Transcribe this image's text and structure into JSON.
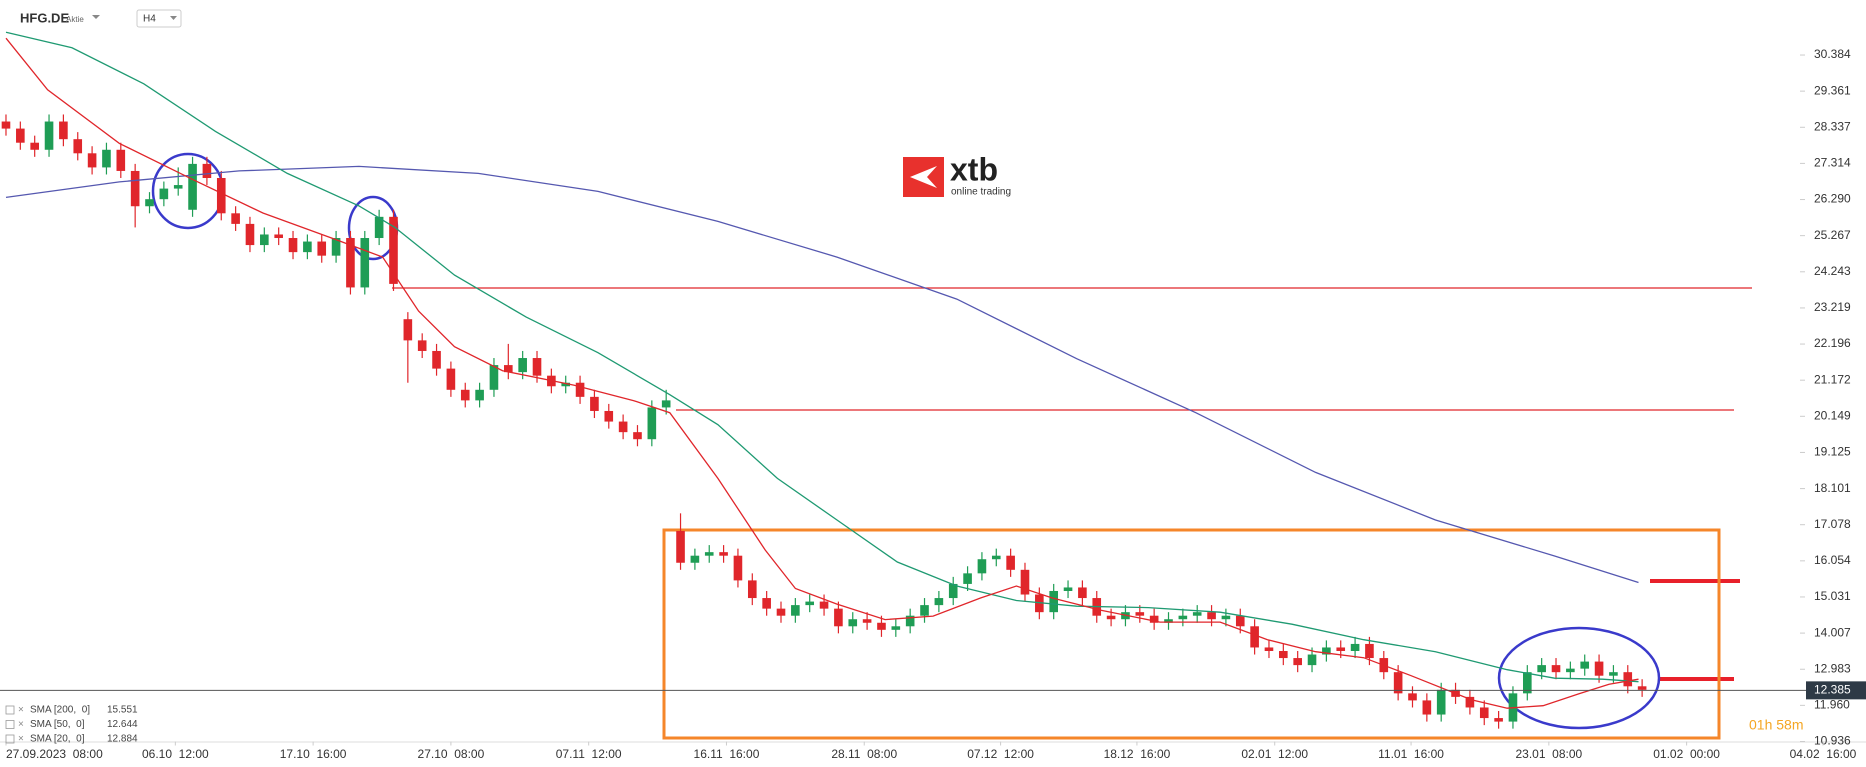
{
  "chart_data": {
    "type": "candlestick",
    "symbol": "HFG.DE",
    "instrument_type": "Aktie",
    "interval": "H4",
    "brand": "xtb",
    "brand_tagline": "online trading",
    "countdown": "01h 58m",
    "last_price": 12.385,
    "up_color": "#1f9d55",
    "down_color": "#e0262b",
    "xlim": [
      -0.417,
      125
    ],
    "ylim": [
      10.936,
      31.943
    ],
    "yticks": [
      30.384,
      29.361,
      28.337,
      27.314,
      {
        "value": 26.29,
        "label": "26.290"
      },
      25.267,
      24.243,
      23.219,
      22.196,
      21.172,
      20.149,
      19.125,
      18.101,
      17.078,
      16.054,
      15.031,
      14.007,
      12.983,
      {
        "value": 11.96,
        "label": "11.960"
      },
      10.936
    ],
    "xticks": [
      {
        "value": 0,
        "label": "27.09.2023  08:00"
      },
      {
        "value": 11.8,
        "label": "06.10  12:00"
      },
      {
        "value": 21.4,
        "label": "17.10  16:00"
      },
      {
        "value": 31,
        "label": "27.10  08:00"
      },
      {
        "value": 40.6,
        "label": "07.11  12:00"
      },
      {
        "value": 50.2,
        "label": "16.11  16:00"
      },
      {
        "value": 59.8,
        "label": "28.11  08:00"
      },
      {
        "value": 69.3,
        "label": "07.12  12:00"
      },
      {
        "value": 78.8,
        "label": "18.12  16:00"
      },
      {
        "value": 88.4,
        "label": "02.01  12:00"
      },
      {
        "value": 97.9,
        "label": "11.01  16:00"
      },
      {
        "value": 107.5,
        "label": "23.01  08:00"
      },
      {
        "value": 117.1,
        "label": "01.02  00:00"
      },
      {
        "value": 126.6,
        "label": "04.02  16:00"
      }
    ],
    "candles": {
      "open": [
        28.5,
        28.3,
        27.9,
        27.7,
        28.5,
        28.0,
        27.6,
        27.2,
        27.7,
        27.1,
        26.1,
        26.3,
        26.6,
        26.0,
        27.3,
        26.9,
        25.9,
        25.6,
        25.0,
        25.3,
        25.2,
        24.8,
        25.1,
        24.7,
        25.2,
        23.8,
        25.2,
        25.8,
        22.9,
        22.3,
        22.0,
        21.5,
        20.9,
        20.6,
        20.9,
        21.6,
        21.4,
        21.8,
        21.3,
        21.0,
        21.1,
        20.7,
        20.3,
        20.0,
        19.7,
        19.5,
        20.4,
        16.9,
        16.0,
        16.2,
        16.3,
        16.2,
        15.5,
        15.0,
        14.7,
        14.5,
        14.8,
        14.9,
        14.7,
        14.2,
        14.4,
        14.3,
        14.1,
        14.2,
        14.5,
        14.8,
        15.0,
        15.4,
        15.7,
        16.1,
        16.2,
        15.8,
        15.1,
        14.6,
        15.2,
        15.3,
        15.0,
        14.5,
        14.4,
        14.6,
        14.5,
        14.3,
        14.4,
        14.5,
        14.6,
        14.4,
        14.5,
        14.2,
        13.6,
        13.5,
        13.3,
        13.1,
        13.4,
        13.6,
        13.5,
        13.7,
        13.3,
        12.9,
        12.3,
        12.1,
        11.7,
        12.4,
        12.2,
        11.9,
        11.6,
        11.5,
        12.3,
        12.9,
        13.1,
        12.9,
        13.0,
        13.2,
        12.8,
        12.9,
        12.5
      ],
      "high": [
        28.7,
        28.5,
        28.1,
        28.7,
        28.7,
        28.2,
        27.8,
        27.9,
        27.9,
        27.3,
        26.5,
        26.8,
        27.2,
        27.5,
        27.5,
        27.1,
        26.1,
        25.8,
        25.5,
        25.5,
        25.4,
        25.3,
        25.3,
        25.4,
        25.4,
        25.4,
        26.0,
        26.0,
        23.1,
        22.5,
        22.2,
        21.7,
        21.1,
        21.1,
        21.8,
        22.2,
        22.0,
        22.0,
        21.5,
        21.3,
        21.3,
        20.9,
        20.5,
        20.2,
        19.9,
        20.6,
        20.9,
        17.4,
        16.4,
        16.5,
        16.5,
        16.4,
        15.7,
        15.2,
        14.9,
        15.0,
        15.1,
        15.1,
        14.9,
        14.6,
        14.6,
        14.5,
        14.4,
        14.7,
        15.0,
        15.2,
        15.6,
        15.9,
        16.3,
        16.4,
        16.4,
        16.0,
        15.3,
        15.4,
        15.5,
        15.5,
        15.2,
        14.7,
        14.8,
        14.8,
        14.7,
        14.6,
        14.7,
        14.8,
        14.8,
        14.7,
        14.7,
        14.4,
        13.8,
        13.7,
        13.5,
        13.6,
        13.8,
        13.8,
        13.9,
        13.9,
        13.5,
        13.1,
        12.5,
        12.3,
        12.6,
        12.6,
        12.4,
        12.1,
        11.8,
        12.5,
        13.1,
        13.3,
        13.3,
        13.2,
        13.4,
        13.4,
        13.1,
        13.1,
        12.7
      ],
      "low": [
        28.1,
        27.7,
        27.5,
        27.5,
        27.8,
        27.4,
        27.0,
        27.0,
        26.9,
        25.5,
        25.9,
        26.1,
        26.4,
        25.8,
        26.7,
        25.7,
        25.4,
        24.8,
        24.8,
        25.0,
        24.6,
        24.6,
        24.5,
        24.5,
        23.6,
        23.6,
        25.0,
        23.7,
        21.1,
        21.8,
        21.3,
        20.7,
        20.4,
        20.4,
        20.7,
        21.2,
        21.2,
        21.1,
        20.8,
        20.8,
        20.5,
        20.1,
        19.8,
        19.5,
        19.3,
        19.3,
        20.2,
        15.8,
        15.8,
        16.0,
        16.0,
        15.3,
        14.8,
        14.5,
        14.3,
        14.3,
        14.6,
        14.5,
        14.0,
        14.0,
        14.1,
        13.9,
        13.9,
        14.0,
        14.3,
        14.6,
        14.8,
        15.2,
        15.5,
        15.9,
        15.6,
        14.9,
        14.4,
        14.4,
        15.0,
        14.8,
        14.3,
        14.2,
        14.2,
        14.3,
        14.1,
        14.1,
        14.2,
        14.3,
        14.2,
        14.2,
        14.0,
        13.4,
        13.3,
        13.1,
        12.9,
        12.9,
        13.2,
        13.3,
        13.3,
        13.1,
        12.7,
        12.1,
        11.9,
        11.5,
        11.5,
        12.0,
        11.7,
        11.4,
        11.3,
        11.3,
        12.1,
        12.7,
        12.7,
        12.7,
        12.8,
        12.6,
        12.6,
        12.3,
        12.2
      ],
      "close": [
        28.3,
        27.9,
        27.7,
        28.5,
        28.0,
        27.6,
        27.2,
        27.7,
        27.1,
        26.1,
        26.3,
        26.6,
        26.7,
        27.3,
        26.9,
        25.9,
        25.6,
        25.0,
        25.3,
        25.2,
        24.8,
        25.1,
        24.7,
        25.2,
        23.8,
        25.2,
        25.8,
        23.9,
        22.3,
        22.0,
        21.5,
        20.9,
        20.6,
        20.9,
        21.6,
        21.4,
        21.8,
        21.3,
        21.0,
        21.1,
        20.7,
        20.3,
        20.0,
        19.7,
        19.5,
        20.4,
        20.6,
        16.0,
        16.2,
        16.3,
        16.2,
        15.5,
        15.0,
        14.7,
        14.5,
        14.8,
        14.9,
        14.7,
        14.2,
        14.4,
        14.3,
        14.1,
        14.2,
        14.5,
        14.8,
        15.0,
        15.4,
        15.7,
        16.1,
        16.2,
        15.8,
        15.1,
        14.6,
        15.2,
        15.3,
        15.0,
        14.5,
        14.4,
        14.6,
        14.5,
        14.3,
        14.4,
        14.5,
        14.6,
        14.4,
        14.5,
        14.2,
        13.6,
        13.5,
        13.3,
        13.1,
        13.4,
        13.6,
        13.5,
        13.7,
        13.3,
        12.9,
        12.3,
        12.1,
        11.7,
        12.4,
        12.2,
        11.9,
        11.6,
        11.5,
        12.3,
        12.9,
        13.1,
        12.9,
        13.0,
        13.2,
        12.8,
        12.9,
        12.5,
        12.4
      ]
    },
    "series": [
      {
        "name": "SMA [200,  0]",
        "last": 15.551,
        "color": "#5558b0",
        "x": [
          0,
          7.9,
          16.25,
          24.6,
          32.9,
          41.25,
          49.6,
          57.9,
          66.25,
          74.6,
          82.9,
          91.25,
          99.6,
          107.9,
          113.75
        ],
        "values": [
          26.35,
          26.79,
          27.1,
          27.23,
          27.03,
          26.52,
          25.67,
          24.66,
          23.47,
          21.78,
          20.25,
          18.56,
          17.21,
          16.19,
          15.44
        ]
      },
      {
        "name": "SMA [50,  0]",
        "last": 12.644,
        "color": "#1f9a72",
        "x": [
          0,
          4.6,
          9.6,
          14.6,
          19.6,
          24.6,
          27.1,
          31.25,
          36.25,
          41.25,
          46.25,
          49.6,
          53.75,
          57.9,
          62.1,
          66.25,
          70.4,
          74.6,
          79.6,
          84.6,
          89.6,
          94.6,
          99.6,
          104.6,
          107.9,
          111.25,
          113.75
        ],
        "values": [
          31.03,
          30.59,
          29.57,
          28.22,
          27.03,
          26.11,
          25.5,
          24.15,
          22.96,
          21.95,
          20.76,
          19.91,
          18.39,
          17.21,
          16.02,
          15.34,
          14.93,
          14.77,
          14.73,
          14.6,
          14.26,
          13.82,
          13.48,
          12.97,
          12.73,
          12.7,
          12.63
        ]
      },
      {
        "name": "SMA [20,  0]",
        "last": 12.884,
        "color": "#e0262b",
        "x": [
          0,
          2.9,
          7.9,
          13,
          17.9,
          22.9,
          26.25,
          28.75,
          31.25,
          34.6,
          39.6,
          43.75,
          46.25,
          49.6,
          52.9,
          55,
          57.9,
          61.25,
          64.6,
          67.9,
          70.4,
          72.9,
          76.25,
          80.4,
          84.6,
          87.9,
          91.25,
          94.6,
          97.9,
          102.1,
          104.6,
          107.1,
          109.6,
          111.7,
          113.75
        ],
        "values": [
          30.86,
          29.4,
          27.88,
          26.86,
          25.91,
          25.17,
          24.66,
          23.13,
          22.12,
          21.44,
          21.03,
          20.59,
          20.25,
          18.39,
          16.36,
          15.27,
          14.83,
          14.39,
          14.49,
          15.0,
          15.34,
          15.0,
          14.66,
          14.32,
          14.32,
          13.82,
          13.48,
          13.31,
          12.8,
          12.12,
          11.88,
          11.95,
          12.29,
          12.56,
          12.7
        ]
      }
    ]
  }
}
